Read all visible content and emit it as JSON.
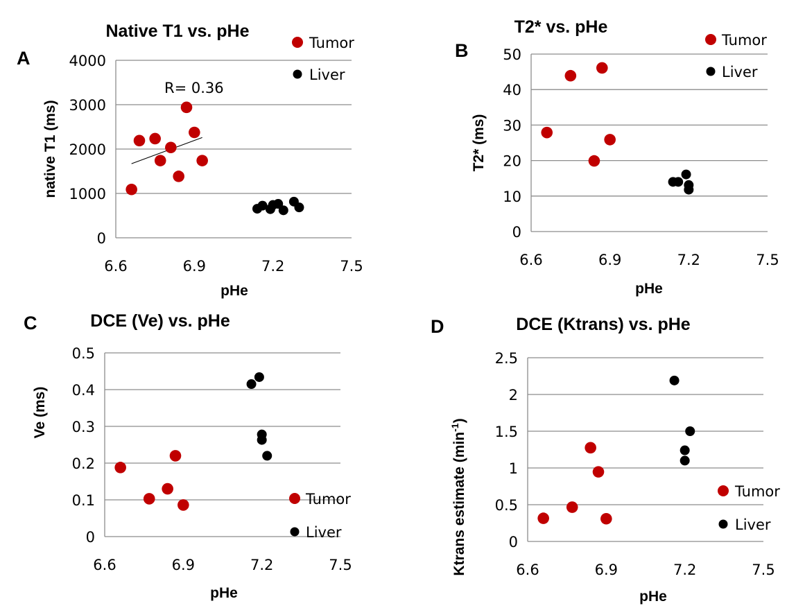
{
  "figure": {
    "colors": {
      "tumor": "#c00000",
      "liver": "#000000",
      "grid": "#8c8c8c"
    }
  },
  "chart_data": [
    {
      "id": "A",
      "type": "scatter",
      "panel_letter": "A",
      "title": "Native T1 vs. pHe",
      "xlabel": "pHe",
      "ylabel": "native T1 (ms)",
      "xlim": [
        6.6,
        7.5
      ],
      "ylim": [
        0,
        4000
      ],
      "xticks": [
        6.6,
        6.9,
        7.2,
        7.5
      ],
      "xtick_labels": [
        "6.6",
        "6.9",
        "7.2",
        "7.5"
      ],
      "yticks": [
        0,
        1000,
        2000,
        3000,
        4000
      ],
      "ytick_labels": [
        "0",
        "1000",
        "2000",
        "3000",
        "4000"
      ],
      "grid": "horizontal",
      "legend_position": "top-right, above plot",
      "legend": [
        "Tumor",
        "Liver"
      ],
      "annotation": "R= 0.36",
      "trendline": {
        "series": "Tumor",
        "x": [
          6.66,
          6.93
        ],
        "y": [
          1670,
          2260
        ]
      },
      "series": [
        {
          "name": "Tumor",
          "color": "#c00000",
          "x": [
            6.66,
            6.69,
            6.75,
            6.81,
            6.77,
            6.87,
            6.9,
            6.93,
            6.84
          ],
          "y": [
            1090,
            2190,
            2235,
            2035,
            1740,
            2940,
            2375,
            1740,
            1385
          ]
        },
        {
          "name": "Liver",
          "color": "#000000",
          "x": [
            7.14,
            7.16,
            7.19,
            7.2,
            7.22,
            7.24,
            7.28,
            7.3
          ],
          "y": [
            655,
            725,
            645,
            740,
            765,
            620,
            815,
            685
          ]
        }
      ]
    },
    {
      "id": "B",
      "type": "scatter",
      "panel_letter": "B",
      "title": "T2* vs. pHe",
      "xlabel": "pHe",
      "ylabel": "T2* (ms)",
      "xlim": [
        6.6,
        7.5
      ],
      "ylim": [
        0,
        50
      ],
      "xticks": [
        6.6,
        6.9,
        7.2,
        7.5
      ],
      "xtick_labels": [
        "6.6",
        "6.9",
        "7.2",
        "7.5"
      ],
      "yticks": [
        0,
        10,
        20,
        30,
        40,
        50
      ],
      "ytick_labels": [
        "0",
        "10",
        "20",
        "30",
        "40",
        "50"
      ],
      "grid": "horizontal",
      "legend_position": "top-right",
      "legend": [
        "Tumor",
        "Liver"
      ],
      "series": [
        {
          "name": "Tumor",
          "color": "#c00000",
          "x": [
            6.66,
            6.75,
            6.87,
            6.9,
            6.84
          ],
          "y": [
            27.9,
            43.9,
            46.1,
            25.9,
            19.9
          ]
        },
        {
          "name": "Liver",
          "color": "#000000",
          "x": [
            7.14,
            7.16,
            7.19,
            7.2,
            7.2
          ],
          "y": [
            14.0,
            14.0,
            16.1,
            13.1,
            11.8
          ]
        }
      ]
    },
    {
      "id": "C",
      "type": "scatter",
      "panel_letter": "C",
      "title": "DCE (Ve) vs. pHe",
      "xlabel": "pHe",
      "ylabel": "Ve (ms)",
      "xlim": [
        6.6,
        7.5
      ],
      "ylim": [
        0,
        0.5
      ],
      "xticks": [
        6.6,
        6.9,
        7.2,
        7.5
      ],
      "xtick_labels": [
        "6.6",
        "6.9",
        "7.2",
        "7.5"
      ],
      "yticks": [
        0,
        0.1,
        0.2,
        0.3,
        0.4,
        0.5
      ],
      "ytick_labels": [
        "0",
        "0.1",
        "0.2",
        "0.3",
        "0.4",
        "0.5"
      ],
      "grid": "horizontal",
      "legend_position": "bottom-right",
      "legend": [
        "Tumor",
        "Liver"
      ],
      "series": [
        {
          "name": "Tumor",
          "color": "#c00000",
          "x": [
            6.66,
            6.77,
            6.84,
            6.87,
            6.9
          ],
          "y": [
            0.188,
            0.103,
            0.13,
            0.22,
            0.086
          ]
        },
        {
          "name": "Liver",
          "color": "#000000",
          "x": [
            7.16,
            7.19,
            7.2,
            7.2,
            7.22
          ],
          "y": [
            0.415,
            0.434,
            0.278,
            0.263,
            0.22
          ]
        }
      ]
    },
    {
      "id": "D",
      "type": "scatter",
      "panel_letter": "D",
      "title": "DCE (Ktrans) vs. pHe",
      "xlabel": "pHe",
      "ylabel": "Ktrans estimate (min",
      "ylabel_superscript": "-1",
      "ylabel_suffix": ")",
      "xlim": [
        6.6,
        7.5
      ],
      "ylim": [
        0,
        2.5
      ],
      "xticks": [
        6.6,
        6.9,
        7.2,
        7.5
      ],
      "xtick_labels": [
        "6.6",
        "6.9",
        "7.2",
        "7.5"
      ],
      "yticks": [
        0,
        0.5,
        1,
        1.5,
        2,
        2.5
      ],
      "ytick_labels": [
        "0",
        "0.5",
        "1",
        "1.5",
        "2",
        "2.5"
      ],
      "grid": "horizontal",
      "legend_position": "bottom-right",
      "legend": [
        "Tumor",
        "Liver"
      ],
      "series": [
        {
          "name": "Tumor",
          "color": "#c00000",
          "x": [
            6.66,
            6.77,
            6.84,
            6.87,
            6.9
          ],
          "y": [
            0.315,
            0.466,
            1.275,
            0.947,
            0.309
          ]
        },
        {
          "name": "Liver",
          "color": "#000000",
          "x": [
            7.16,
            7.22,
            7.2,
            7.2
          ],
          "y": [
            2.19,
            1.5,
            1.24,
            1.1
          ]
        }
      ]
    }
  ]
}
